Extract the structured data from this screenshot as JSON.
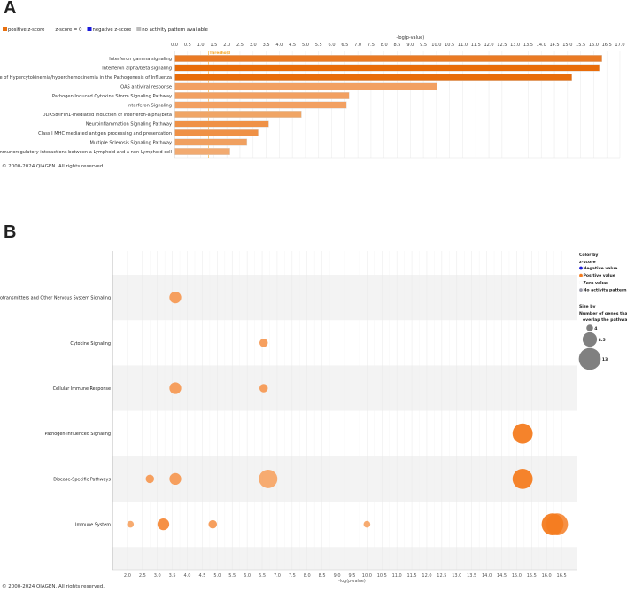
{
  "panel_labels": {
    "a": "A",
    "b": "B"
  },
  "copyright": "© 2000-2024 QIAGEN. All rights reserved.",
  "colors": {
    "positive_dark": "#e8700f",
    "positive_mid": "#ef8c45",
    "positive_light": "#f2a566",
    "negative": "#1a1adb",
    "no_activity": "#bbbbbb",
    "band": "#f3f3f3",
    "threshold": "#f5a623"
  },
  "chart_data": [
    {
      "type": "bar",
      "orientation": "horizontal",
      "legend": [
        {
          "label": "positive z-score",
          "color": "#e8700f"
        },
        {
          "label": "z-score = 0",
          "color": "#ffffff"
        },
        {
          "label": "negative z-score",
          "color": "#1a1adb"
        },
        {
          "label": "no activity pattern available",
          "color": "#bbbbbb"
        }
      ],
      "legend_position": "top-left",
      "xlabel": "-log(p-value)",
      "xlim": [
        0,
        17
      ],
      "xticks": [
        "0.0",
        "0.5",
        "1.0",
        "1.5",
        "2.0",
        "2.5",
        "3.0",
        "3.5",
        "4.0",
        "4.5",
        "5.0",
        "5.5",
        "6.0",
        "6.5",
        "7.0",
        "7.5",
        "8.0",
        "8.5",
        "9.0",
        "9.5",
        "10.0",
        "10.5",
        "11.0",
        "11.5",
        "12.0",
        "12.5",
        "13.0",
        "13.5",
        "14.0",
        "14.5",
        "15.0",
        "15.5",
        "16.0",
        "16.5",
        "17.0"
      ],
      "threshold": {
        "label": "Threshold",
        "value": 1.3
      },
      "grid": true,
      "categories": [
        "Interferon gamma signaling",
        "Interferon alpha/beta signaling",
        "Role of Hypercytokinemia/hyperchemokinemia in the Pathogenesis of Influenza",
        "OAS antiviral response",
        "Pathogen Induced Cytokine Storm Signaling Pathway",
        "Interferon Signaling",
        "DDX58/IFIH1-mediated induction of interferon-alpha/beta",
        "Neuroinflammation Signaling Pathway",
        "Class I MHC mediated antigen processing and presentation",
        "Multiple Sclerosis Signaling Pathway",
        "Immunoregulatory interactions between a Lymphoid and a non-Lymphoid cell"
      ],
      "values": [
        16.3,
        16.2,
        15.15,
        10.0,
        6.65,
        6.55,
        4.83,
        3.58,
        3.18,
        2.75,
        2.1
      ],
      "bar_colors": [
        "#ea7a24",
        "#e86c0a",
        "#e86c0a",
        "#f2a062",
        "#f2a062",
        "#f2a062",
        "#f0a565",
        "#ef9146",
        "#ef9146",
        "#f0a060",
        "#f2aa70"
      ]
    },
    {
      "type": "scatter",
      "subtype": "bubble",
      "xlabel": "-log(p-value)",
      "xlim": [
        1.5,
        17.0
      ],
      "xticks": [
        "2.0",
        "2.5",
        "3.0",
        "3.5",
        "4.0",
        "4.5",
        "5.0",
        "5.5",
        "6.0",
        "6.5",
        "7.0",
        "7.5",
        "8.0",
        "8.5",
        "9.0",
        "9.5",
        "10.0",
        "10.5",
        "11.0",
        "11.5",
        "12.0",
        "12.5",
        "13.0",
        "13.5",
        "14.0",
        "14.5",
        "15.0",
        "15.5",
        "16.0",
        "16.5"
      ],
      "grid": true,
      "categories": [
        "Neurotransmitters and Other Nervous System Signaling",
        "Cytokine Signaling",
        "Cellular Immune Response",
        "Pathogen-Influenced Signaling",
        "Disease-Specific Pathways",
        "Immune System"
      ],
      "points": [
        {
          "category": "Neurotransmitters and Other Nervous System Signaling",
          "x": 3.6,
          "genes": 7,
          "color": "#f59a55"
        },
        {
          "category": "Cytokine Signaling",
          "x": 6.55,
          "genes": 5,
          "color": "#f59a55"
        },
        {
          "category": "Cellular Immune Response",
          "x": 3.6,
          "genes": 7,
          "color": "#f59a55"
        },
        {
          "category": "Cellular Immune Response",
          "x": 6.55,
          "genes": 5,
          "color": "#f59a55"
        },
        {
          "category": "Pathogen-Influenced Signaling",
          "x": 15.2,
          "genes": 12,
          "color": "#f47c20"
        },
        {
          "category": "Disease-Specific Pathways",
          "x": 2.75,
          "genes": 5,
          "color": "#f59a55"
        },
        {
          "category": "Disease-Specific Pathways",
          "x": 3.6,
          "genes": 7,
          "color": "#f59a55"
        },
        {
          "category": "Disease-Specific Pathways",
          "x": 6.7,
          "genes": 11,
          "color": "#f7a668"
        },
        {
          "category": "Disease-Specific Pathways",
          "x": 15.2,
          "genes": 12,
          "color": "#f47c20"
        },
        {
          "category": "Immune System",
          "x": 2.1,
          "genes": 4,
          "color": "#f7a668"
        },
        {
          "category": "Immune System",
          "x": 3.2,
          "genes": 7,
          "color": "#f58a3a"
        },
        {
          "category": "Immune System",
          "x": 4.85,
          "genes": 5,
          "color": "#f59a55"
        },
        {
          "category": "Immune System",
          "x": 10.0,
          "genes": 4,
          "color": "#f7a668"
        },
        {
          "category": "Immune System",
          "x": 16.35,
          "genes": 13,
          "color": "#f58a3a"
        },
        {
          "category": "Immune System",
          "x": 16.2,
          "genes": 13,
          "color": "#f47c20"
        }
      ],
      "legend_position": "right",
      "legend": {
        "color_title_1": "Color by",
        "color_title_2": "z-score",
        "color_items": [
          {
            "label": "Negative value",
            "color": "#1a1adb"
          },
          {
            "label": "Positive value",
            "color": "#f47c20"
          },
          {
            "label": "Zero value",
            "color": "#ffffff"
          },
          {
            "label": "No activity pattern",
            "color": "#9a9aaa"
          }
        ],
        "size_title_1": "Size by",
        "size_title_2": "Number of genes that",
        "size_title_3": "overlap the pathway",
        "size_items": [
          {
            "label": "4",
            "genes": 4
          },
          {
            "label": "8.5",
            "genes": 8.5
          },
          {
            "label": "13",
            "genes": 13
          }
        ]
      }
    }
  ]
}
